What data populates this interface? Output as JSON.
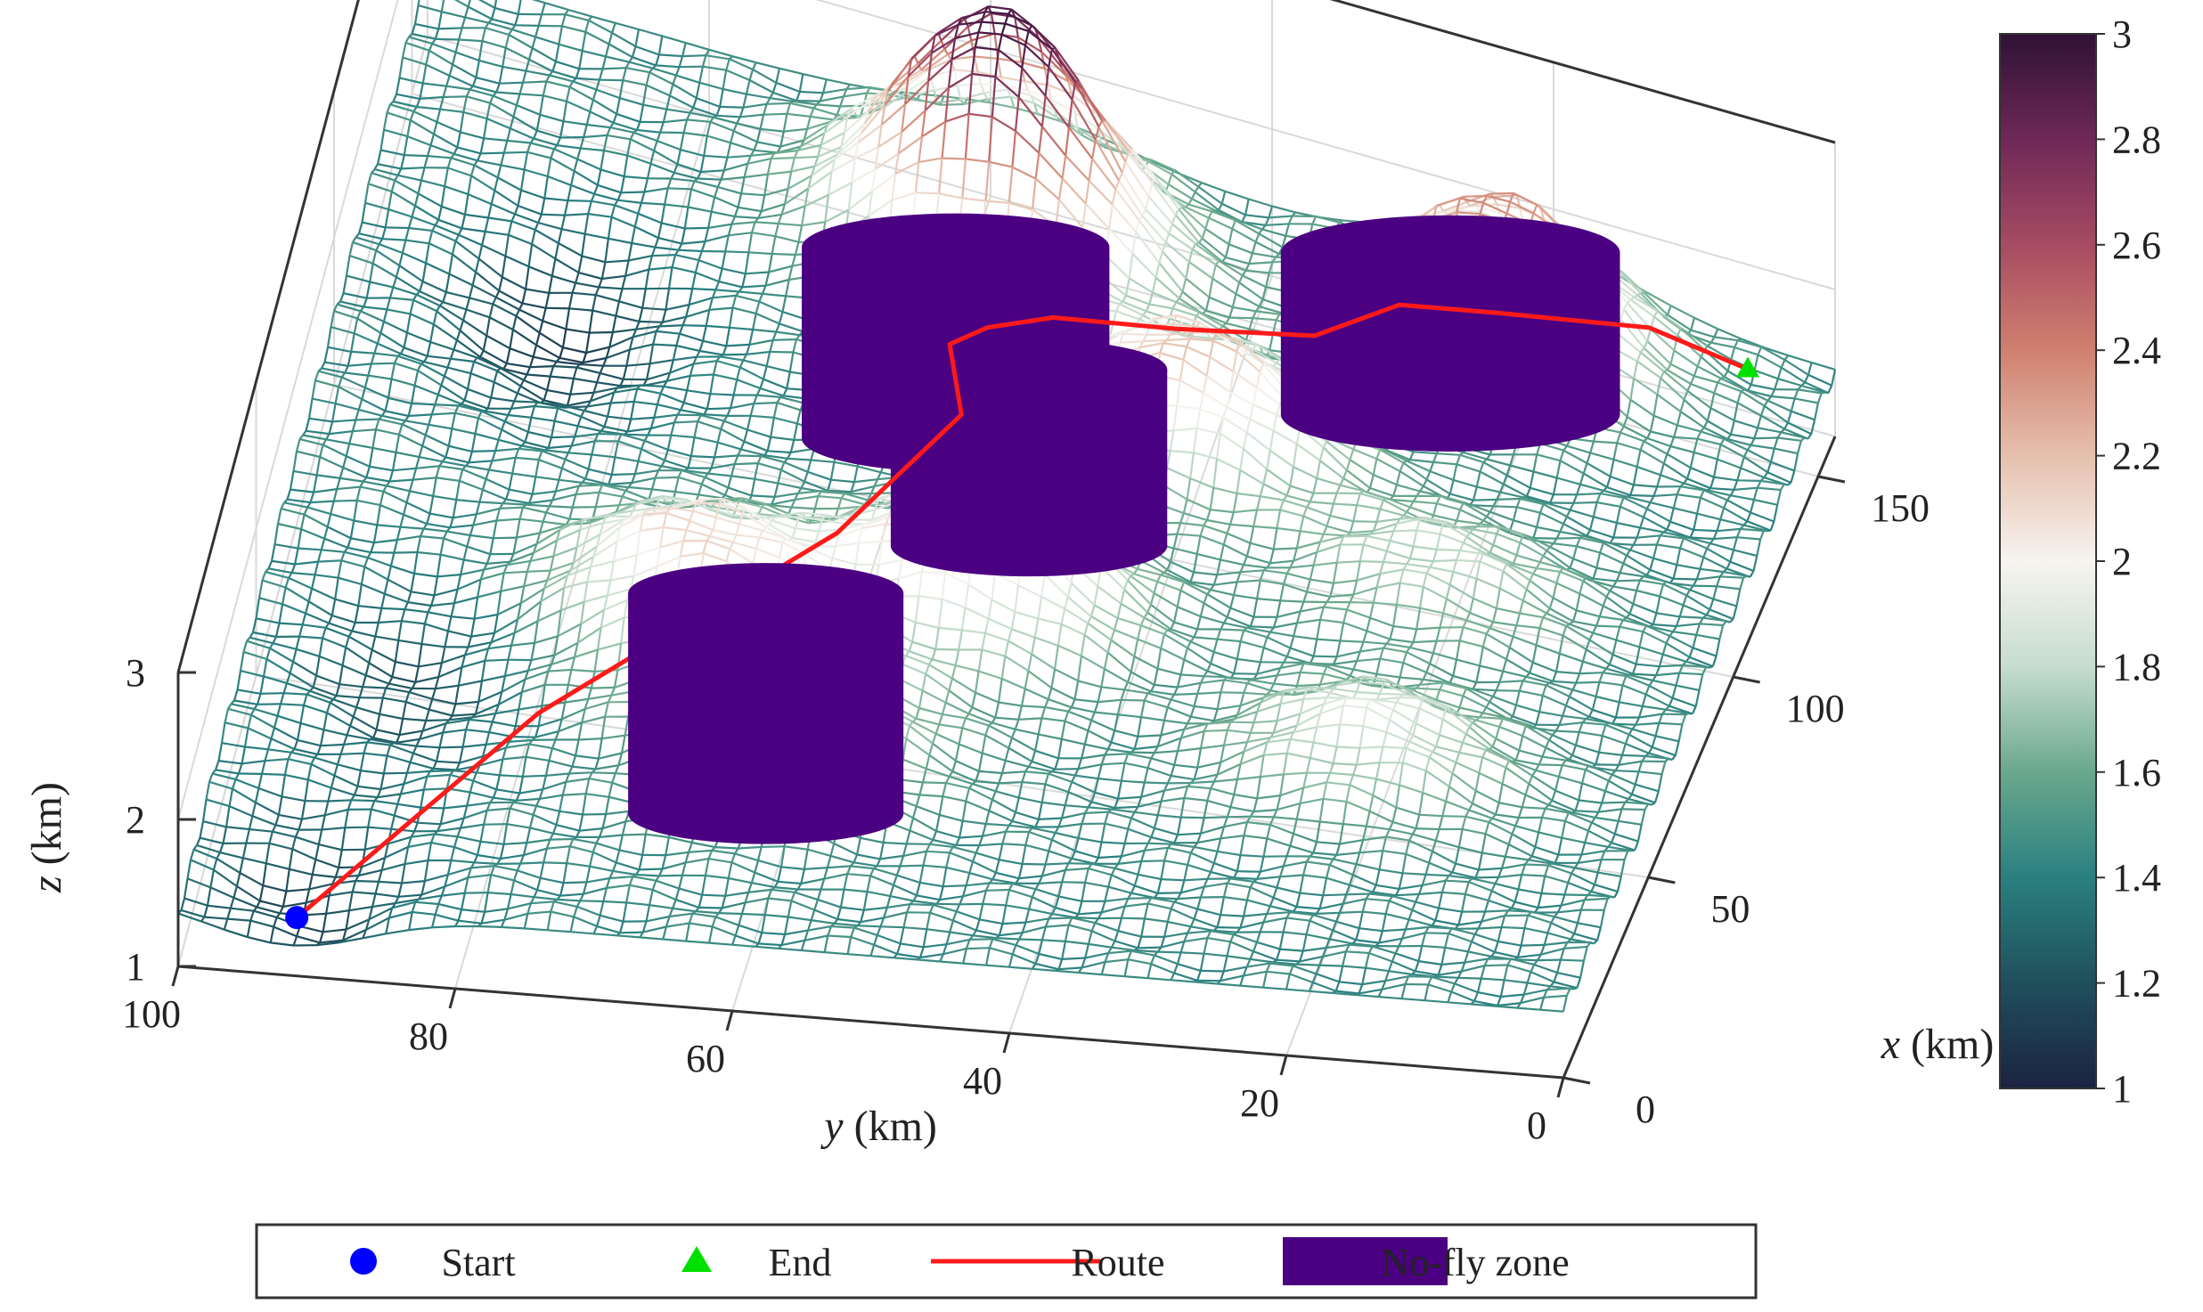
{
  "chart_data": {
    "type": "surface3d",
    "title": "",
    "axes": {
      "x": {
        "label_var": "x",
        "label_unit": " (km)",
        "range": [
          0,
          160
        ],
        "ticks": [
          0,
          50,
          100,
          150
        ],
        "tick_labels": [
          "0",
          "50",
          "100",
          "150"
        ]
      },
      "y": {
        "label_var": "y",
        "label_unit": " (km)",
        "range": [
          0,
          100
        ],
        "ticks": [
          0,
          20,
          40,
          60,
          80,
          100
        ],
        "tick_labels": [
          "0",
          "20",
          "40",
          "60",
          "80",
          "100"
        ],
        "reversed": true
      },
      "z": {
        "label_var": "z",
        "label_unit": " (km)",
        "range": [
          1,
          3
        ],
        "ticks": [
          1,
          2,
          3
        ],
        "tick_labels": [
          "1",
          "2",
          "3"
        ]
      }
    },
    "grid": true,
    "colorbar": {
      "range": [
        1,
        3
      ],
      "ticks": [
        1,
        1.2,
        1.4,
        1.6,
        1.8,
        2,
        2.2,
        2.4,
        2.6,
        2.8,
        3
      ],
      "tick_labels": [
        "1",
        "1.2",
        "1.4",
        "1.6",
        "1.8",
        "2",
        "2.2",
        "2.4",
        "2.6",
        "2.8",
        "3"
      ],
      "colormap": [
        "#1c2340",
        "#1f4f5c",
        "#2a8080",
        "#6aa88d",
        "#c7ddcd",
        "#f7f4f0",
        "#e6c0ae",
        "#d0806f",
        "#a64b62",
        "#6e2857",
        "#2f1236"
      ]
    },
    "terrain_peaks": [
      {
        "x": 140,
        "y": 57,
        "z": 3.0
      },
      {
        "x": 146,
        "y": 22,
        "z": 2.4
      },
      {
        "x": 110,
        "y": 40,
        "z": 2.2
      },
      {
        "x": 70,
        "y": 50,
        "z": 2.25
      },
      {
        "x": 60,
        "y": 70,
        "z": 2.1
      },
      {
        "x": 40,
        "y": 60,
        "z": 1.9
      },
      {
        "x": 50,
        "y": 20,
        "z": 1.9
      },
      {
        "x": 90,
        "y": 20,
        "z": 1.8
      }
    ],
    "terrain_valleys": [
      {
        "x": 110,
        "y": 85,
        "z": 1.1
      },
      {
        "x": 45,
        "y": 88,
        "z": 1.2
      },
      {
        "x": 5,
        "y": 92,
        "z": 1.15
      }
    ],
    "start": {
      "x": 5,
      "y": 92,
      "z": 1.2
    },
    "end": {
      "x": 150,
      "y": 5,
      "z": 1.6
    },
    "route": [
      [
        5,
        92,
        1.2
      ],
      [
        35,
        78,
        1.6
      ],
      [
        65,
        60,
        2.0
      ],
      [
        90,
        54,
        2.05
      ],
      [
        100,
        56,
        2.15
      ],
      [
        106,
        54,
        2.1
      ],
      [
        112,
        50,
        2.05
      ],
      [
        118,
        42,
        1.95
      ],
      [
        126,
        33,
        1.85
      ],
      [
        135,
        28,
        1.9
      ],
      [
        143,
        22,
        1.75
      ],
      [
        150,
        12,
        1.7
      ],
      [
        150,
        5,
        1.6
      ]
    ],
    "no_fly_zones": [
      {
        "center_x": 95,
        "center_y": 55,
        "radius_km": 10,
        "z_range": [
          1.7,
          3.0
        ]
      },
      {
        "center_x": 80,
        "center_y": 48,
        "radius_km": 9,
        "z_range": [
          1.6,
          2.8
        ]
      },
      {
        "center_x": 115,
        "center_y": 22,
        "radius_km": 11,
        "z_range": [
          1.9,
          3.0
        ]
      },
      {
        "center_x": 38,
        "center_y": 62,
        "radius_km": 9,
        "z_range": [
          1.0,
          2.5
        ]
      }
    ],
    "legend": {
      "placement": "bottom",
      "entries": [
        {
          "label": "Start",
          "marker": "circle",
          "color": "#0000ff"
        },
        {
          "label": "End",
          "marker": "triangle",
          "color": "#00e000"
        },
        {
          "label": "Route",
          "marker": "line",
          "color": "#ff1a1a"
        },
        {
          "label": "No-fly zone",
          "marker": "box",
          "color": "#4b0082"
        }
      ]
    }
  }
}
